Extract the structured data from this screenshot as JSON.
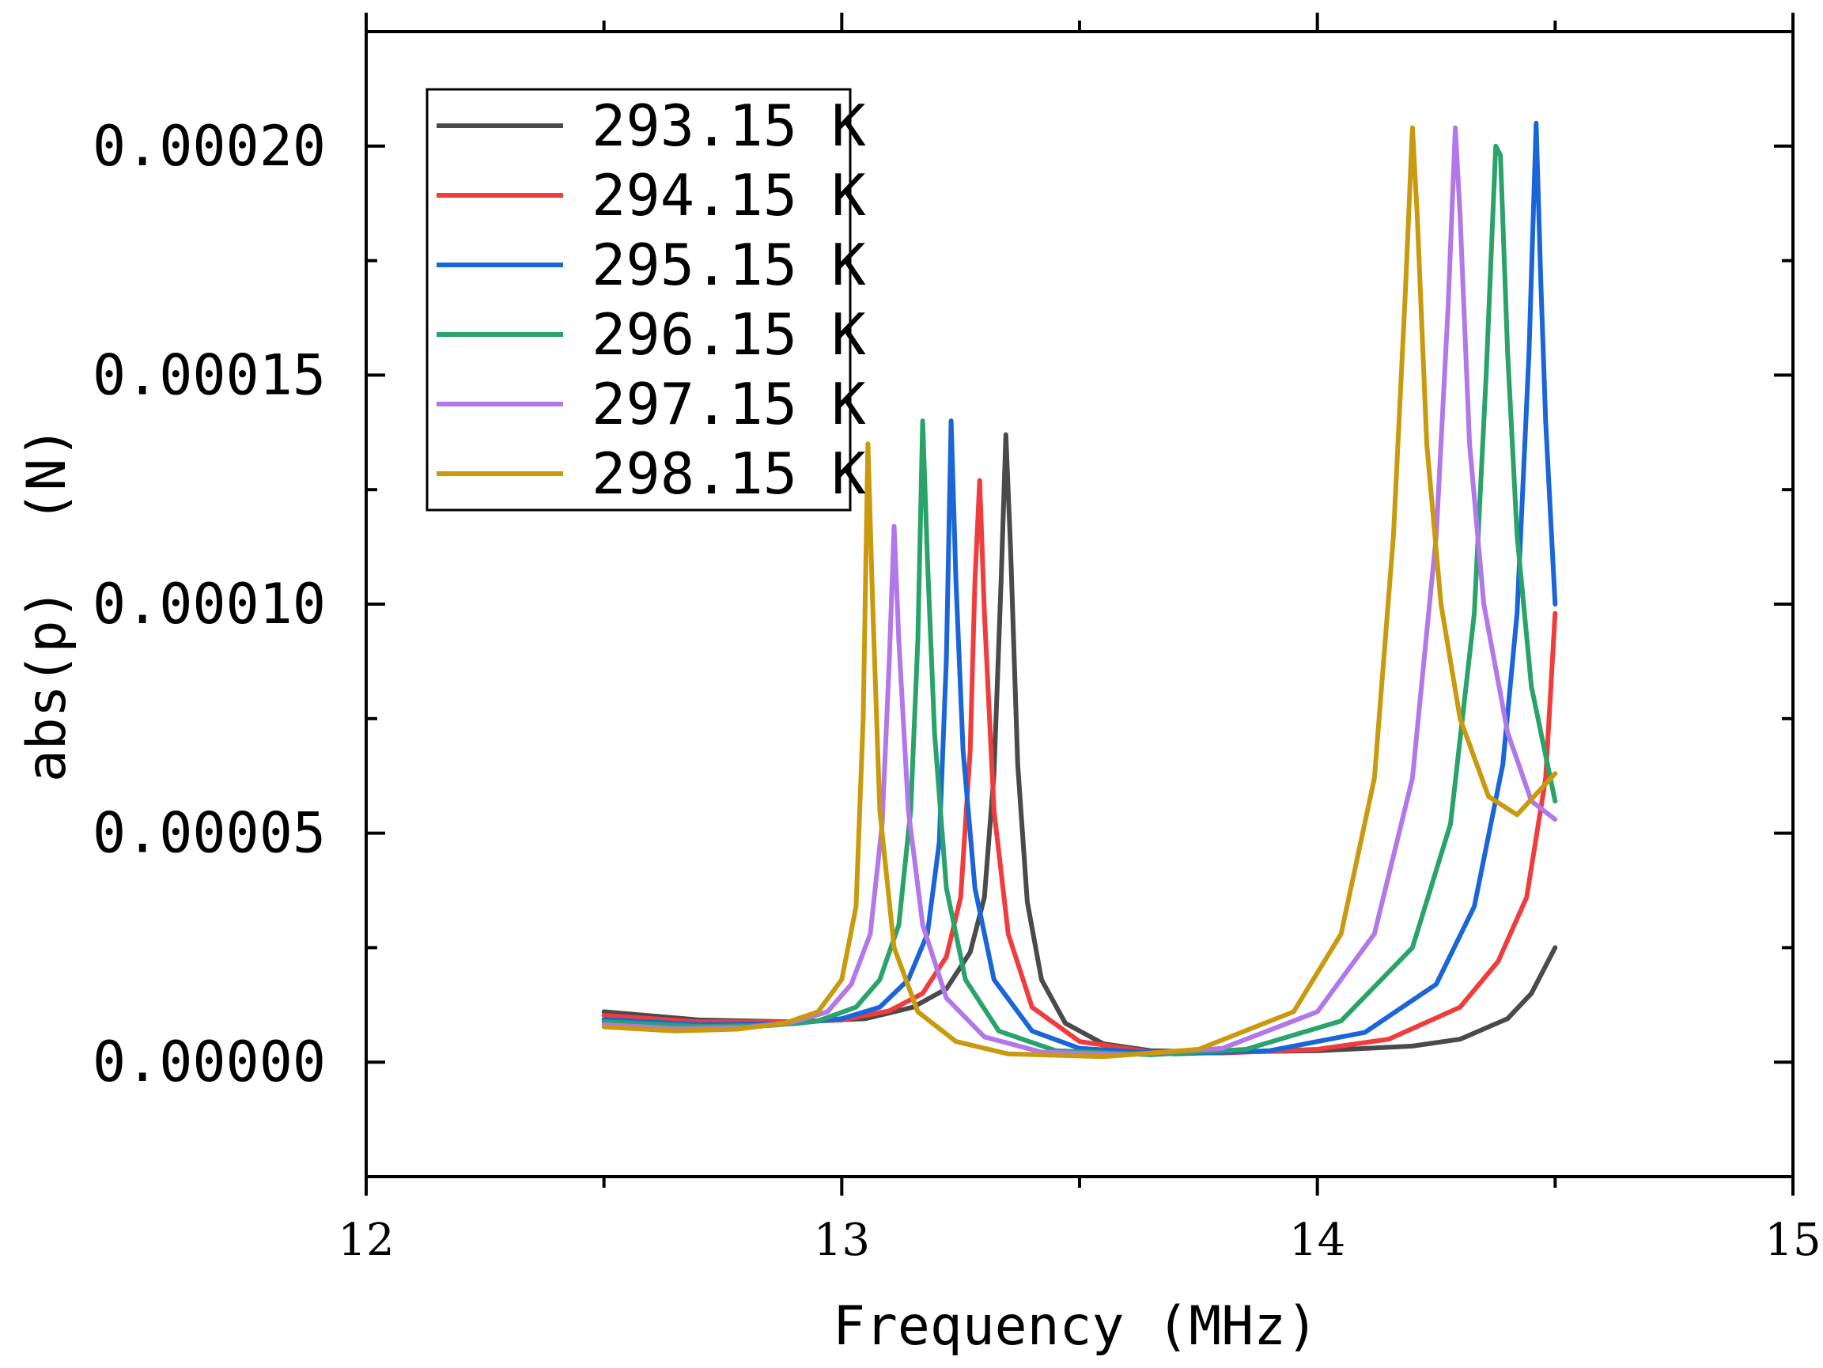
{
  "chart_data": {
    "type": "line",
    "title": "",
    "xlabel": "Frequency (MHz)",
    "ylabel": "abs(p)  (N)",
    "xlim": [
      12,
      15
    ],
    "ylim": [
      -2.5e-05,
      0.000225
    ],
    "xticks": [
      12,
      13,
      14,
      15
    ],
    "xtick_labels": [
      "12",
      "13",
      "14",
      "15"
    ],
    "yticks": [
      0,
      5e-05,
      0.0001,
      0.00015,
      0.0002
    ],
    "ytick_labels": [
      "0.00000",
      "0.00005",
      "0.00010",
      "0.00015",
      "0.00020"
    ],
    "grid": false,
    "legend_position": "top-left",
    "series": [
      {
        "name": "293.15 K",
        "color": "#4a4a4a",
        "x": [
          12.5,
          12.7,
          12.9,
          13.05,
          13.15,
          13.22,
          13.27,
          13.3,
          13.32,
          13.335,
          13.345,
          13.355,
          13.37,
          13.39,
          13.42,
          13.47,
          13.55,
          13.65,
          13.8,
          14.0,
          14.2,
          14.3,
          14.4,
          14.45,
          14.5
        ],
        "values": [
          1.1e-05,
          9.2e-06,
          8.8e-06,
          9.5e-06,
          1.2e-05,
          1.6e-05,
          2.4e-05,
          3.6e-05,
          6.3e-05,
          0.000105,
          0.000137,
          0.000112,
          6.5e-05,
          3.5e-05,
          1.8e-05,
          8.5e-06,
          4e-06,
          2.5e-06,
          2.2e-06,
          2.5e-06,
          3.5e-06,
          5e-06,
          9.5e-06,
          1.5e-05,
          2.5e-05
        ]
      },
      {
        "name": "294.15 K",
        "color": "#f03c3c",
        "x": [
          12.5,
          12.7,
          12.9,
          13.0,
          13.1,
          13.17,
          13.22,
          13.25,
          13.27,
          13.28,
          13.29,
          13.3,
          13.32,
          13.35,
          13.4,
          13.5,
          13.65,
          13.8,
          14.0,
          14.15,
          14.3,
          14.38,
          14.44,
          14.48,
          14.5
        ],
        "values": [
          1.02e-05,
          8.8e-06,
          8.8e-06,
          9.2e-06,
          1.12e-05,
          1.5e-05,
          2.3e-05,
          3.6e-05,
          6.8e-05,
          0.000105,
          0.000127,
          9.8e-05,
          5.5e-05,
          2.8e-05,
          1.2e-05,
          4.5e-06,
          2.2e-06,
          2e-06,
          2.8e-06,
          5e-06,
          1.2e-05,
          2.2e-05,
          3.6e-05,
          6.2e-05,
          9.8e-05
        ]
      },
      {
        "name": "295.15 K",
        "color": "#1a66d9",
        "x": [
          12.5,
          12.7,
          12.9,
          13.0,
          13.08,
          13.14,
          13.18,
          13.205,
          13.22,
          13.23,
          13.24,
          13.255,
          13.28,
          13.32,
          13.4,
          13.5,
          13.7,
          13.9,
          14.1,
          14.25,
          14.33,
          14.39,
          14.42,
          14.445,
          14.46,
          14.47,
          14.48,
          14.5
        ],
        "values": [
          9.3e-06,
          8.2e-06,
          8.4e-06,
          9.5e-06,
          1.2e-05,
          1.8e-05,
          2.8e-05,
          4.8e-05,
          8.8e-05,
          0.00014,
          0.000105,
          6.8e-05,
          3.8e-05,
          1.8e-05,
          6.8e-06,
          3e-06,
          1.8e-06,
          2.5e-06,
          6.5e-06,
          1.7e-05,
          3.4e-05,
          6.5e-05,
          9.8e-05,
          0.000155,
          0.000205,
          0.00017,
          0.00014,
          0.0001
        ]
      },
      {
        "name": "296.15 K",
        "color": "#2aa36b",
        "x": [
          12.5,
          12.7,
          12.85,
          12.95,
          13.03,
          13.08,
          13.12,
          13.145,
          13.16,
          13.17,
          13.18,
          13.195,
          13.22,
          13.26,
          13.33,
          13.45,
          13.65,
          13.85,
          14.05,
          14.2,
          14.28,
          14.33,
          14.355,
          14.375,
          14.385,
          14.4,
          14.42,
          14.45,
          14.5
        ],
        "values": [
          8.8e-06,
          7.8e-06,
          8e-06,
          9e-06,
          1.2e-05,
          1.8e-05,
          3e-05,
          5.5e-05,
          9.2e-05,
          0.00014,
          0.00011,
          7.2e-05,
          3.8e-05,
          1.8e-05,
          6.8e-06,
          2.5e-06,
          1.6e-06,
          2.8e-06,
          9e-06,
          2.5e-05,
          5.2e-05,
          9.8e-05,
          0.00015,
          0.0002,
          0.000198,
          0.000155,
          0.000115,
          8.2e-05,
          5.7e-05
        ]
      },
      {
        "name": "297.15 K",
        "color": "#b277e8",
        "x": [
          12.5,
          12.65,
          12.8,
          12.9,
          12.97,
          13.02,
          13.06,
          13.085,
          13.1,
          13.11,
          13.12,
          13.14,
          13.17,
          13.22,
          13.3,
          13.42,
          13.6,
          13.8,
          14.0,
          14.12,
          14.2,
          14.25,
          14.275,
          14.29,
          14.3,
          14.32,
          14.35,
          14.4,
          14.45,
          14.5
        ],
        "values": [
          8.2e-06,
          7.3e-06,
          7.6e-06,
          8.8e-06,
          1.1e-05,
          1.7e-05,
          2.8e-05,
          5.2e-05,
          8.8e-05,
          0.000117,
          9.2e-05,
          5.5e-05,
          3e-05,
          1.4e-05,
          5.5e-06,
          2.2e-06,
          1.6e-06,
          3e-06,
          1.1e-05,
          2.8e-05,
          6.2e-05,
          0.000115,
          0.000165,
          0.000204,
          0.000185,
          0.000135,
          0.0001,
          7.2e-05,
          5.7e-05,
          5.3e-05
        ]
      },
      {
        "name": "298.15 K",
        "color": "#c99a0e",
        "x": [
          12.5,
          12.65,
          12.78,
          12.88,
          12.95,
          13.0,
          13.03,
          13.045,
          13.055,
          13.065,
          13.08,
          13.11,
          13.16,
          13.24,
          13.35,
          13.55,
          13.75,
          13.95,
          14.05,
          14.12,
          14.16,
          14.185,
          14.2,
          14.21,
          14.23,
          14.26,
          14.3,
          14.36,
          14.42,
          14.5
        ],
        "values": [
          7.7e-06,
          6.8e-06,
          7.2e-06,
          8.5e-06,
          1.1e-05,
          1.8e-05,
          3.4e-05,
          7.5e-05,
          0.000135,
          0.0001,
          5.5e-05,
          2.5e-05,
          1.1e-05,
          4.5e-06,
          1.8e-06,
          1.2e-06,
          2.8e-06,
          1.1e-05,
          2.8e-05,
          6.2e-05,
          0.000115,
          0.000168,
          0.000204,
          0.000185,
          0.000135,
          0.0001,
          7.5e-05,
          5.8e-05,
          5.4e-05,
          6.3e-05
        ]
      }
    ]
  }
}
